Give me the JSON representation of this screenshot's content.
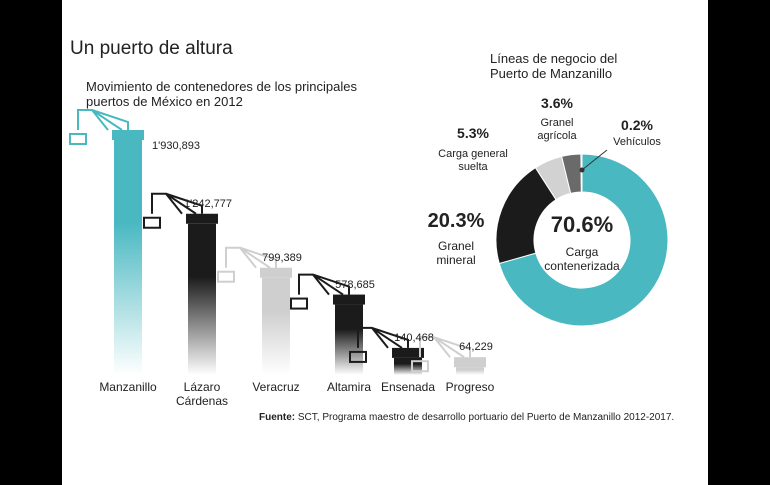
{
  "chart_data": [
    {
      "type": "bar",
      "title": "Un puerto de altura",
      "subtitle": "Movimiento de contenedores de los principales puertos de México en 2012",
      "categories": [
        "Manzanillo",
        "Lázaro Cárdenas",
        "Veracruz",
        "Altamira",
        "Ensenada",
        "Progreso"
      ],
      "values": [
        1930893,
        1242777,
        799389,
        578685,
        140468,
        64229
      ],
      "value_labels": [
        "1'930,893",
        "1'242,777",
        "799,389",
        "578,685",
        "140,468",
        "64,229"
      ],
      "colors": [
        "#49b8c1",
        "#1b1b1b",
        "#cfcfcf",
        "#1b1b1b",
        "#1b1b1b",
        "#cfcfcf"
      ],
      "source_label": "Fuente:",
      "source": "SCT, Programa maestro de desarrollo portuario del Puerto de Manzanillo 2012-2017."
    },
    {
      "type": "donut",
      "title": "Líneas de negocio del Puerto de Manzanillo",
      "categories": [
        "Carga contenerizada",
        "Granel mineral",
        "Carga general suelta",
        "Granel agrícola",
        "Vehículos"
      ],
      "values": [
        70.6,
        20.3,
        5.3,
        3.6,
        0.2
      ],
      "value_labels": [
        "70.6%",
        "20.3%",
        "5.3%",
        "3.6%",
        "0.2%"
      ],
      "colors": [
        "#49b8c1",
        "#1b1b1b",
        "#d2d2d2",
        "#6a6a6a",
        "#333333"
      ]
    }
  ]
}
